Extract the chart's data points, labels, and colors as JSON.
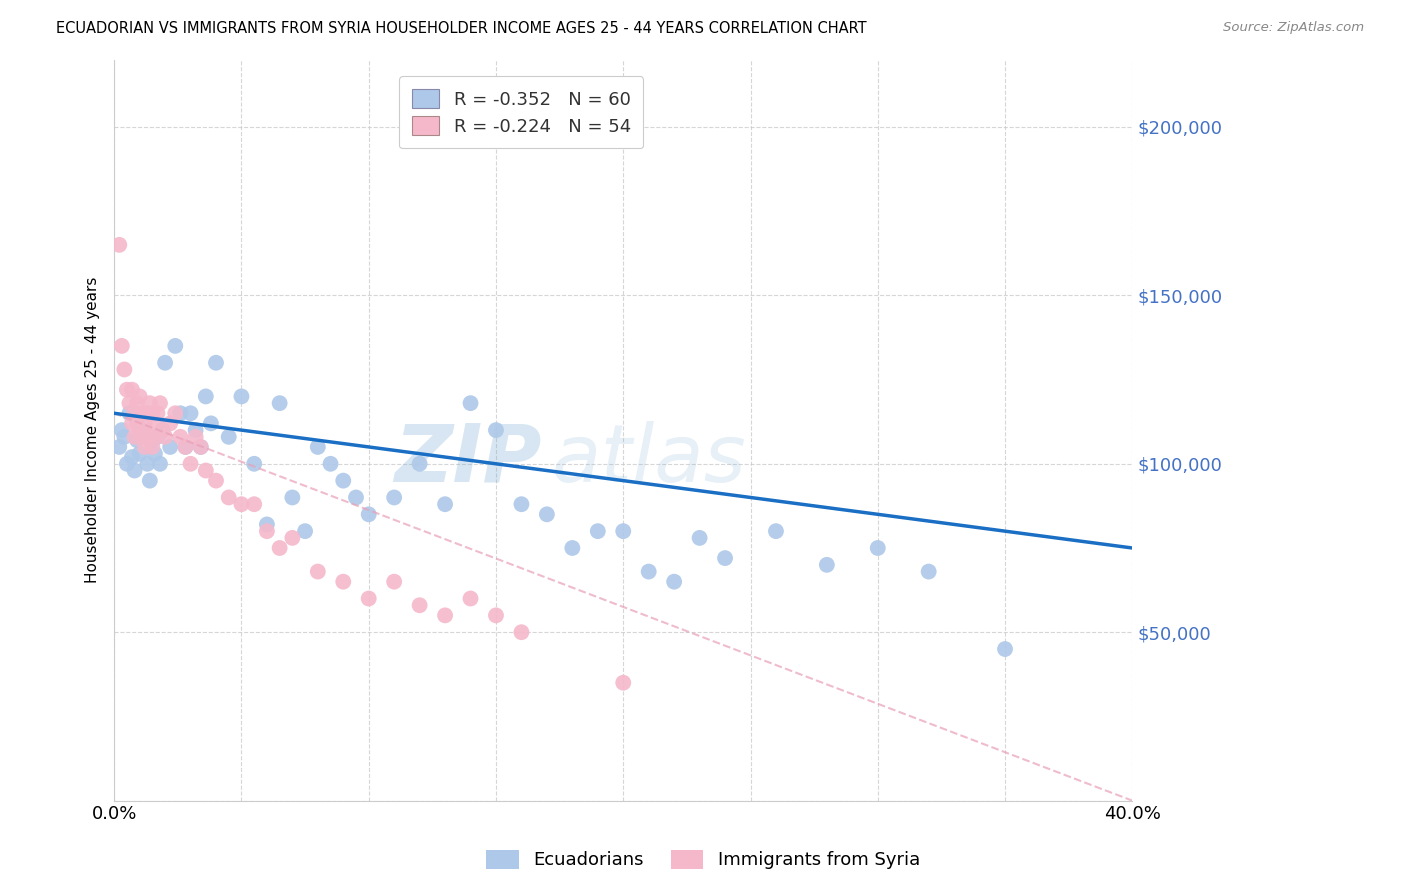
{
  "title": "ECUADORIAN VS IMMIGRANTS FROM SYRIA HOUSEHOLDER INCOME AGES 25 - 44 YEARS CORRELATION CHART",
  "source": "Source: ZipAtlas.com",
  "ylabel": "Householder Income Ages 25 - 44 years",
  "xlim": [
    0.0,
    0.4
  ],
  "ylim": [
    0,
    220000
  ],
  "yticks": [
    0,
    50000,
    100000,
    150000,
    200000
  ],
  "xticks": [
    0.0,
    0.05,
    0.1,
    0.15,
    0.2,
    0.25,
    0.3,
    0.35,
    0.4
  ],
  "blue_color": "#adc8e8",
  "pink_color": "#f5b8cb",
  "blue_line_color": "#1a6fc4",
  "pink_line_color": "#e8a0b8",
  "legend_blue_label": "R = -0.352   N = 60",
  "legend_pink_label": "R = -0.224   N = 54",
  "watermark_zip": "ZIP",
  "watermark_atlas": "atlas",
  "legend_label_ecuadorians": "Ecuadorians",
  "legend_label_syria": "Immigrants from Syria",
  "blue_x": [
    0.002,
    0.003,
    0.004,
    0.005,
    0.006,
    0.007,
    0.008,
    0.009,
    0.01,
    0.011,
    0.012,
    0.013,
    0.014,
    0.015,
    0.016,
    0.017,
    0.018,
    0.019,
    0.02,
    0.022,
    0.024,
    0.026,
    0.028,
    0.03,
    0.032,
    0.034,
    0.036,
    0.038,
    0.04,
    0.045,
    0.05,
    0.055,
    0.06,
    0.065,
    0.07,
    0.075,
    0.08,
    0.085,
    0.09,
    0.095,
    0.1,
    0.11,
    0.12,
    0.13,
    0.14,
    0.15,
    0.16,
    0.17,
    0.18,
    0.19,
    0.2,
    0.21,
    0.22,
    0.23,
    0.24,
    0.26,
    0.28,
    0.3,
    0.32,
    0.35
  ],
  "blue_y": [
    105000,
    110000,
    108000,
    100000,
    115000,
    102000,
    98000,
    107000,
    103000,
    110000,
    108000,
    100000,
    95000,
    107000,
    103000,
    108000,
    100000,
    110000,
    130000,
    105000,
    135000,
    115000,
    105000,
    115000,
    110000,
    105000,
    120000,
    112000,
    130000,
    108000,
    120000,
    100000,
    82000,
    118000,
    90000,
    80000,
    105000,
    100000,
    95000,
    90000,
    85000,
    90000,
    100000,
    88000,
    118000,
    110000,
    88000,
    85000,
    75000,
    80000,
    80000,
    68000,
    65000,
    78000,
    72000,
    80000,
    70000,
    75000,
    68000,
    45000
  ],
  "pink_x": [
    0.002,
    0.003,
    0.004,
    0.005,
    0.006,
    0.007,
    0.007,
    0.008,
    0.008,
    0.009,
    0.009,
    0.01,
    0.01,
    0.011,
    0.011,
    0.012,
    0.012,
    0.013,
    0.013,
    0.014,
    0.014,
    0.015,
    0.015,
    0.016,
    0.016,
    0.017,
    0.018,
    0.019,
    0.02,
    0.022,
    0.024,
    0.026,
    0.028,
    0.03,
    0.032,
    0.034,
    0.036,
    0.04,
    0.045,
    0.05,
    0.055,
    0.06,
    0.065,
    0.07,
    0.08,
    0.09,
    0.1,
    0.11,
    0.12,
    0.13,
    0.14,
    0.15,
    0.16,
    0.2
  ],
  "pink_y": [
    165000,
    135000,
    128000,
    122000,
    118000,
    112000,
    122000,
    115000,
    108000,
    118000,
    112000,
    120000,
    110000,
    115000,
    108000,
    112000,
    105000,
    115000,
    108000,
    118000,
    108000,
    115000,
    105000,
    112000,
    108000,
    115000,
    118000,
    110000,
    108000,
    112000,
    115000,
    108000,
    105000,
    100000,
    108000,
    105000,
    98000,
    95000,
    90000,
    88000,
    88000,
    80000,
    75000,
    78000,
    68000,
    65000,
    60000,
    65000,
    58000,
    55000,
    60000,
    55000,
    50000,
    35000
  ]
}
